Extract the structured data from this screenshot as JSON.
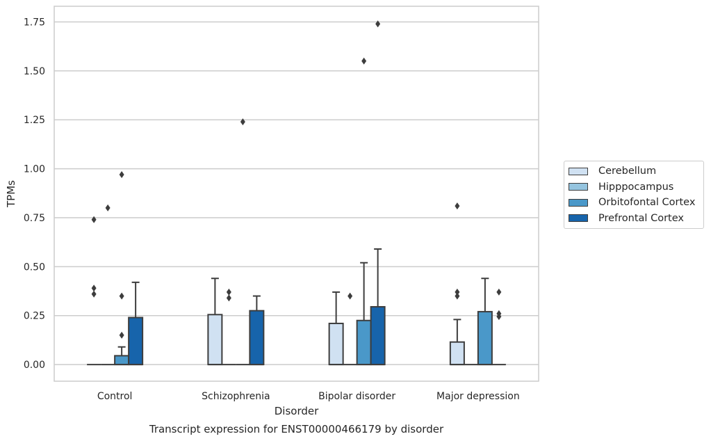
{
  "chart_data": {
    "type": "boxplot",
    "title": "Transcript expression for ENST00000466179 by disorder",
    "xlabel": "Disorder",
    "ylabel": "TPMs",
    "ylim": [
      -0.085,
      1.83
    ],
    "yticks": [
      "0.00",
      "0.25",
      "0.50",
      "0.75",
      "1.00",
      "1.25",
      "1.50",
      "1.75"
    ],
    "categories": [
      "Control",
      "Schizophrenia",
      "Bipolar disorder",
      "Major depression"
    ],
    "grid": "horizontal",
    "legend_position": "right",
    "series": [
      {
        "name": "Cerebellum",
        "color": "#d0e1f2",
        "boxes": [
          {
            "q1": 0,
            "median": 0,
            "q3": 0,
            "whisker_low": 0,
            "whisker_high": 0,
            "outliers": [
              0.74,
              0.39,
              0.36
            ]
          },
          {
            "q1": 0,
            "median": 0,
            "q3": 0.255,
            "whisker_low": 0,
            "whisker_high": 0.44,
            "outliers": []
          },
          {
            "q1": 0,
            "median": 0,
            "q3": 0.21,
            "whisker_low": 0,
            "whisker_high": 0.37,
            "outliers": []
          },
          {
            "q1": 0,
            "median": 0,
            "q3": 0.115,
            "whisker_low": 0,
            "whisker_high": 0.23,
            "outliers": [
              0.81,
              0.37,
              0.35
            ]
          }
        ]
      },
      {
        "name": "Hipppocampus",
        "color": "#94c4df",
        "boxes": [
          {
            "q1": 0,
            "median": 0,
            "q3": 0,
            "whisker_low": 0,
            "whisker_high": 0,
            "outliers": [
              0.8
            ]
          },
          {
            "q1": 0,
            "median": 0,
            "q3": 0,
            "whisker_low": 0,
            "whisker_high": 0,
            "outliers": [
              0.37,
              0.34
            ]
          },
          {
            "q1": 0,
            "median": 0,
            "q3": 0,
            "whisker_low": 0,
            "whisker_high": 0,
            "outliers": [
              0.35
            ]
          },
          {
            "q1": 0,
            "median": 0,
            "q3": 0,
            "whisker_low": 0,
            "whisker_high": 0,
            "outliers": []
          }
        ]
      },
      {
        "name": "Orbitofontal Cortex",
        "color": "#4a98c9",
        "boxes": [
          {
            "q1": 0,
            "median": 0,
            "q3": 0.045,
            "whisker_low": 0,
            "whisker_high": 0.09,
            "outliers": [
              0.97,
              0.35,
              0.15
            ]
          },
          {
            "q1": 0,
            "median": 0,
            "q3": 0,
            "whisker_low": 0,
            "whisker_high": 0,
            "outliers": [
              1.24
            ]
          },
          {
            "q1": 0,
            "median": 0,
            "q3": 0.225,
            "whisker_low": 0,
            "whisker_high": 0.52,
            "outliers": [
              1.55
            ]
          },
          {
            "q1": 0,
            "median": 0,
            "q3": 0.27,
            "whisker_low": 0,
            "whisker_high": 0.44,
            "outliers": []
          }
        ]
      },
      {
        "name": "Prefrontal Cortex",
        "color": "#1764ab",
        "boxes": [
          {
            "q1": 0,
            "median": 0,
            "q3": 0.24,
            "whisker_low": 0,
            "whisker_high": 0.42,
            "outliers": []
          },
          {
            "q1": 0,
            "median": 0,
            "q3": 0.275,
            "whisker_low": 0,
            "whisker_high": 0.35,
            "outliers": []
          },
          {
            "q1": 0,
            "median": 0,
            "q3": 0.295,
            "whisker_low": 0,
            "whisker_high": 0.59,
            "outliers": [
              1.74
            ]
          },
          {
            "q1": 0,
            "median": 0,
            "q3": 0,
            "whisker_low": 0,
            "whisker_high": 0,
            "outliers": [
              0.37,
              0.26,
              0.245
            ]
          }
        ]
      }
    ]
  }
}
